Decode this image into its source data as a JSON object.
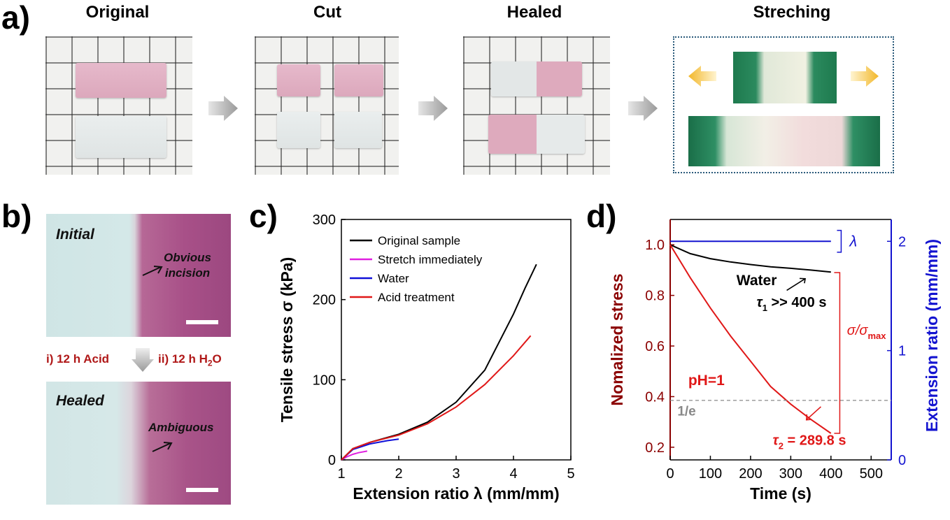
{
  "panel_a": {
    "letter": "a)",
    "titles": [
      "Original",
      "Cut",
      "Healed",
      "Streching"
    ]
  },
  "panel_b": {
    "letter": "b)",
    "initial_label": "Initial",
    "incision_label_line1": "Obvious",
    "incision_label_line2": "incision",
    "step1": "i) 12 h Acid",
    "step2_prefix": "ii) 12 h H",
    "step2_sub": "2",
    "step2_suffix": "O",
    "healed_label": "Healed",
    "ambiguous_label": "Ambiguous"
  },
  "colors": {
    "black_curve": "#000000",
    "magenta_curve": "#e020e0",
    "blue_curve": "#1010d8",
    "red_curve": "#e01818",
    "dark_red_axis": "#8b0000",
    "blue_axis": "#1414d0",
    "gray_dashed": "#888888"
  },
  "chart_data": [
    {
      "panel": "c)",
      "type": "line",
      "xlabel": "Extension ratio λ (mm/mm)",
      "ylabel": "Tensile stress σ (kPa)",
      "xlim": [
        1,
        5
      ],
      "ylim": [
        0,
        300
      ],
      "xticks": [
        1,
        2,
        3,
        4,
        5
      ],
      "yticks": [
        0,
        100,
        200,
        300
      ],
      "legend_position": "top-left",
      "series": [
        {
          "name": "Original sample",
          "color": "#000000",
          "x": [
            1.0,
            1.2,
            1.5,
            2.0,
            2.5,
            3.0,
            3.5,
            4.0,
            4.2,
            4.4
          ],
          "y": [
            0,
            14,
            22,
            32,
            47,
            72,
            112,
            182,
            214,
            244
          ]
        },
        {
          "name": "Stretch immediately",
          "color": "#e020e0",
          "x": [
            1.0,
            1.1,
            1.2,
            1.3,
            1.45
          ],
          "y": [
            0,
            4,
            7,
            9,
            11
          ]
        },
        {
          "name": "Water",
          "color": "#1010d8",
          "x": [
            1.0,
            1.2,
            1.5,
            1.8,
            2.0
          ],
          "y": [
            0,
            13,
            20,
            24,
            26
          ]
        },
        {
          "name": "Acid treatment",
          "color": "#e01818",
          "x": [
            1.0,
            1.2,
            1.5,
            2.0,
            2.5,
            3.0,
            3.5,
            4.0,
            4.3
          ],
          "y": [
            0,
            14,
            22,
            31,
            45,
            66,
            94,
            130,
            155
          ]
        }
      ]
    },
    {
      "panel": "d)",
      "type": "line",
      "xlabel": "Time (s)",
      "ylabel_left": "Nomalized stress",
      "ylabel_right": "Extension ratio (mm/mm)",
      "xlim": [
        0,
        550
      ],
      "ylim_left": [
        0.15,
        1.1
      ],
      "ylim_right": [
        0,
        2.2
      ],
      "xticks": [
        0,
        100,
        200,
        300,
        400,
        500
      ],
      "yticks_left": [
        0.2,
        0.4,
        0.6,
        0.8,
        1.0
      ],
      "yticks_left_labels": [
        "0.2",
        "0.4",
        "0.6",
        "0.8",
        "1.0"
      ],
      "yticks_right": [
        0,
        1,
        2
      ],
      "series": [
        {
          "name": "Water",
          "axis": "left",
          "color": "#000000",
          "x": [
            0,
            50,
            100,
            150,
            200,
            250,
            300,
            350,
            400
          ],
          "y": [
            1.0,
            0.965,
            0.945,
            0.932,
            0.922,
            0.913,
            0.907,
            0.9,
            0.892
          ]
        },
        {
          "name": "pH=1",
          "axis": "left",
          "color": "#e01818",
          "x": [
            0,
            50,
            100,
            150,
            200,
            250,
            300,
            350,
            400
          ],
          "y": [
            1.0,
            0.87,
            0.75,
            0.64,
            0.54,
            0.44,
            0.37,
            0.31,
            0.255
          ]
        },
        {
          "name": "λ",
          "axis": "right",
          "color": "#1414d0",
          "x": [
            0,
            400
          ],
          "y": [
            2.0,
            2.0
          ]
        },
        {
          "name": "1/e",
          "axis": "left",
          "color": "#888888",
          "dashed": true,
          "x": [
            0,
            550
          ],
          "y": [
            0.385,
            0.385
          ]
        }
      ],
      "annotations": {
        "water": "Water",
        "tau1_sym": "τ",
        "tau1_sub": "1",
        "tau1_rest": " >> 400 s",
        "ph": "pH=1",
        "inv_e": "1/e",
        "tau2_sym": "τ",
        "tau2_sub": "2",
        "tau2_rest": " = 289.8 s",
        "lambda": "λ",
        "sigma_ratio_a": "σ/σ",
        "sigma_ratio_sub": "max"
      }
    }
  ]
}
